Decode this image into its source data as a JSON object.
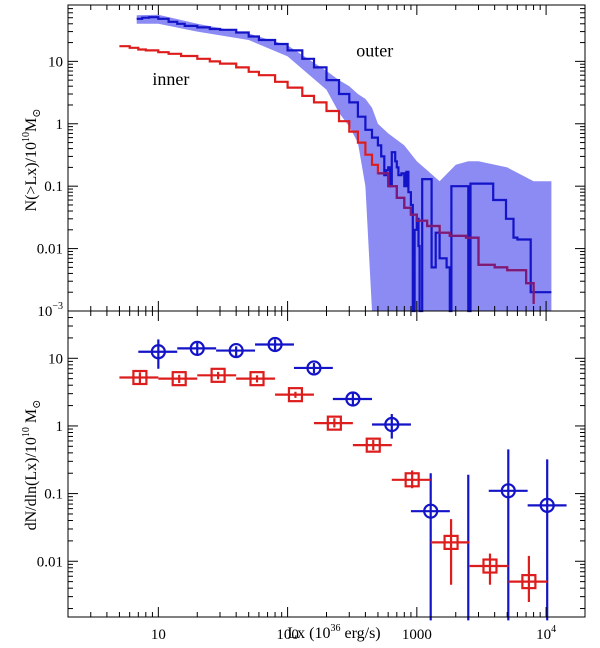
{
  "chart_data": [
    {
      "type": "line",
      "panel": "top",
      "xscale": "log",
      "yscale": "log",
      "xlim": [
        2,
        20000
      ],
      "ylim": [
        0.001,
        80
      ],
      "ylabel": {
        "main": "N(>Lx)/10",
        "exp": "10",
        "unit": "M",
        "sub": "⊙"
      },
      "yticks": [
        {
          "v": 10,
          "label": "10"
        },
        {
          "v": 1,
          "label": "1"
        },
        {
          "v": 0.1,
          "label": "0.1"
        },
        {
          "v": 0.01,
          "label": "0.01"
        },
        {
          "v": 0.001,
          "label": "10",
          "exp": "−3"
        }
      ],
      "series": [
        {
          "name": "inner",
          "color": "#dd1c1c",
          "points": [
            [
              5,
              17.5
            ],
            [
              6,
              16.5
            ],
            [
              7,
              15.5
            ],
            [
              8,
              15
            ],
            [
              10,
              14
            ],
            [
              12,
              13.2
            ],
            [
              15,
              12.2
            ],
            [
              20,
              11
            ],
            [
              25,
              10
            ],
            [
              30,
              9.2
            ],
            [
              40,
              8.0
            ],
            [
              50,
              6.8
            ],
            [
              60,
              6.0
            ],
            [
              80,
              4.7
            ],
            [
              100,
              3.8
            ],
            [
              130,
              2.8
            ],
            [
              160,
              2.2
            ],
            [
              200,
              1.6
            ],
            [
              250,
              1.1
            ],
            [
              300,
              0.75
            ],
            [
              350,
              0.5
            ],
            [
              400,
              0.32
            ],
            [
              450,
              0.22
            ],
            [
              500,
              0.16
            ],
            [
              600,
              0.1
            ],
            [
              700,
              0.065
            ],
            [
              800,
              0.045
            ],
            [
              900,
              0.035
            ],
            [
              1000,
              0.028
            ],
            [
              1200,
              0.023
            ],
            [
              1500,
              0.018
            ],
            [
              1800,
              0.016
            ],
            [
              2400,
              0.015
            ],
            [
              3000,
              0.0055
            ],
            [
              4000,
              0.005
            ],
            [
              5000,
              0.0045
            ],
            [
              7000,
              0.0028
            ],
            [
              8000,
              0.0013
            ]
          ]
        },
        {
          "name": "outer",
          "color": "#1313c7",
          "band_color": "#8b8bf3",
          "points": [
            [
              6.8,
              48
            ],
            [
              7.5,
              50
            ],
            [
              8.5,
              51
            ],
            [
              10,
              48
            ],
            [
              12,
              43
            ],
            [
              14,
              40
            ],
            [
              16,
              37
            ],
            [
              20,
              35
            ],
            [
              25,
              33
            ],
            [
              30,
              32
            ],
            [
              40,
              29
            ],
            [
              50,
              25
            ],
            [
              60,
              22
            ],
            [
              80,
              19
            ],
            [
              100,
              15
            ],
            [
              130,
              11
            ],
            [
              160,
              8
            ],
            [
              200,
              5
            ],
            [
              250,
              3
            ],
            [
              300,
              2.2
            ],
            [
              350,
              1.3
            ],
            [
              400,
              0.8
            ],
            [
              450,
              0.6
            ],
            [
              500,
              0.45
            ],
            [
              530,
              0.3
            ],
            [
              560,
              0.15
            ],
            [
              580,
              0.18
            ],
            [
              600,
              0.2
            ],
            [
              620,
              0.1
            ],
            [
              640,
              0.35
            ],
            [
              680,
              0.25
            ],
            [
              700,
              0.2
            ],
            [
              720,
              0.15
            ],
            [
              760,
              0.16
            ],
            [
              800,
              0.1
            ],
            [
              830,
              0.17
            ],
            [
              860,
              0.08
            ],
            [
              900,
              0.05
            ],
            [
              930,
              0.001
            ],
            [
              960,
              0.02
            ],
            [
              1000,
              0.03
            ],
            [
              1030,
              0.011
            ],
            [
              1050,
              0.001
            ],
            [
              1100,
              0.13
            ],
            [
              1200,
              0.13
            ],
            [
              1300,
              0.005
            ],
            [
              1400,
              0.018
            ],
            [
              1500,
              0.007
            ],
            [
              1700,
              0.005
            ],
            [
              1800,
              0.001
            ],
            [
              1850,
              0.1
            ],
            [
              2200,
              0.1
            ],
            [
              2500,
              0.001
            ],
            [
              2600,
              0.11
            ],
            [
              3700,
              0.11
            ],
            [
              3900,
              0.06
            ],
            [
              4600,
              0.06
            ],
            [
              4900,
              0.03
            ],
            [
              5100,
              0.03
            ],
            [
              5600,
              0.015
            ],
            [
              6000,
              0.014
            ],
            [
              7600,
              0.002
            ],
            [
              9800,
              0.002
            ],
            [
              11000,
              0.002
            ]
          ],
          "band": [
            [
              6.8,
              40,
              55
            ],
            [
              10,
              40,
              56
            ],
            [
              20,
              30,
              40
            ],
            [
              50,
              22,
              28
            ],
            [
              100,
              12,
              18
            ],
            [
              200,
              3.5,
              7
            ],
            [
              250,
              1.5,
              5
            ],
            [
              300,
              0.9,
              4
            ],
            [
              350,
              0.5,
              3
            ],
            [
              400,
              0.1,
              2.5
            ],
            [
              450,
              0.001,
              1.8
            ],
            [
              500,
              0.001,
              1.0
            ],
            [
              600,
              0.001,
              0.7
            ],
            [
              800,
              0.001,
              0.45
            ],
            [
              1000,
              0.001,
              0.25
            ],
            [
              1200,
              0.001,
              0.18
            ],
            [
              1500,
              0.001,
              0.12
            ],
            [
              2000,
              0.001,
              0.22
            ],
            [
              2500,
              0.001,
              0.25
            ],
            [
              3000,
              0.001,
              0.25
            ],
            [
              5000,
              0.001,
              0.2
            ],
            [
              8000,
              0.001,
              0.12
            ],
            [
              11000,
              0.001,
              0.12
            ]
          ]
        }
      ]
    },
    {
      "type": "scatter",
      "panel": "bottom",
      "xscale": "log",
      "yscale": "log",
      "xlim": [
        2,
        20000
      ],
      "ylim": [
        0.0015,
        50
      ],
      "xlabel": {
        "main": "Lx (10",
        "exp": "36",
        "tail": " erg/s)"
      },
      "ylabel": {
        "main": "dN/dln(Lx)/10",
        "exp": "10",
        "unit": " M",
        "sub": "⊙"
      },
      "xticks": [
        {
          "v": 10,
          "label": "10"
        },
        {
          "v": 100,
          "label": "100"
        },
        {
          "v": 1000,
          "label": "1000"
        },
        {
          "v": 10000,
          "label": "10",
          "exp": "4"
        }
      ],
      "yticks": [
        {
          "v": 10,
          "label": "10"
        },
        {
          "v": 1,
          "label": "1"
        },
        {
          "v": 0.1,
          "label": "0.1"
        },
        {
          "v": 0.01,
          "label": "0.01"
        }
      ],
      "series": [
        {
          "name": "outer",
          "color": "#1313c7",
          "marker": "circle",
          "points": [
            {
              "x": 10,
              "y": 12.5,
              "xlo": 7,
              "xhi": 14,
              "ylo": 7,
              "yhi": 19
            },
            {
              "x": 20,
              "y": 14,
              "xlo": 14,
              "xhi": 28,
              "ylo": 11,
              "yhi": 17
            },
            {
              "x": 40,
              "y": 13,
              "xlo": 28,
              "xhi": 56,
              "ylo": 10.5,
              "yhi": 15
            },
            {
              "x": 80,
              "y": 16,
              "xlo": 56,
              "xhi": 112,
              "ylo": 13,
              "yhi": 19
            },
            {
              "x": 160,
              "y": 7.2,
              "xlo": 112,
              "xhi": 224,
              "ylo": 6,
              "yhi": 8.5
            },
            {
              "x": 320,
              "y": 2.5,
              "xlo": 224,
              "xhi": 450,
              "ylo": 2,
              "yhi": 3.1
            },
            {
              "x": 640,
              "y": 1.05,
              "xlo": 450,
              "xhi": 900,
              "ylo": 0.65,
              "yhi": 1.5
            },
            {
              "x": 1280,
              "y": 0.055,
              "xlo": 900,
              "xhi": 1800,
              "ylo": 0.0012,
              "yhi": 0.2
            },
            {
              "x": 2500,
              "y": null,
              "xlo": null,
              "xhi": null,
              "ylo": 0.0012,
              "yhi": 0.19
            },
            {
              "x": 5100,
              "y": 0.11,
              "xlo": 3600,
              "xhi": 7200,
              "ylo": 0.0012,
              "yhi": 0.45
            },
            {
              "x": 10200,
              "y": 0.067,
              "xlo": 7200,
              "xhi": 14400,
              "ylo": 0.0012,
              "yhi": 0.32
            }
          ]
        },
        {
          "name": "inner",
          "color": "#dd1c1c",
          "marker": "square",
          "points": [
            {
              "x": 7.2,
              "y": 5.2,
              "xlo": 5,
              "xhi": 10,
              "ylo": 4.2,
              "yhi": 6.2
            },
            {
              "x": 14.5,
              "y": 5.0,
              "xlo": 10,
              "xhi": 20,
              "ylo": 4.3,
              "yhi": 5.7
            },
            {
              "x": 29,
              "y": 5.6,
              "xlo": 20,
              "xhi": 40,
              "ylo": 4.9,
              "yhi": 6.3
            },
            {
              "x": 58,
              "y": 5.0,
              "xlo": 40,
              "xhi": 80,
              "ylo": 4.4,
              "yhi": 5.6
            },
            {
              "x": 115,
              "y": 2.9,
              "xlo": 80,
              "xhi": 160,
              "ylo": 2.6,
              "yhi": 3.2
            },
            {
              "x": 230,
              "y": 1.1,
              "xlo": 160,
              "xhi": 320,
              "ylo": 0.95,
              "yhi": 1.3
            },
            {
              "x": 460,
              "y": 0.52,
              "xlo": 320,
              "xhi": 640,
              "ylo": 0.44,
              "yhi": 0.62
            },
            {
              "x": 920,
              "y": 0.16,
              "xlo": 640,
              "xhi": 1280,
              "ylo": 0.12,
              "yhi": 0.22
            },
            {
              "x": 1840,
              "y": 0.019,
              "xlo": 1280,
              "xhi": 2560,
              "ylo": 0.0045,
              "yhi": 0.042
            },
            {
              "x": 3680,
              "y": 0.0085,
              "xlo": 2560,
              "xhi": 5120,
              "ylo": 0.0045,
              "yhi": 0.013
            },
            {
              "x": 7360,
              "y": 0.005,
              "xlo": 5120,
              "xhi": 10240,
              "ylo": 0.0025,
              "yhi": 0.012
            }
          ]
        }
      ]
    }
  ]
}
